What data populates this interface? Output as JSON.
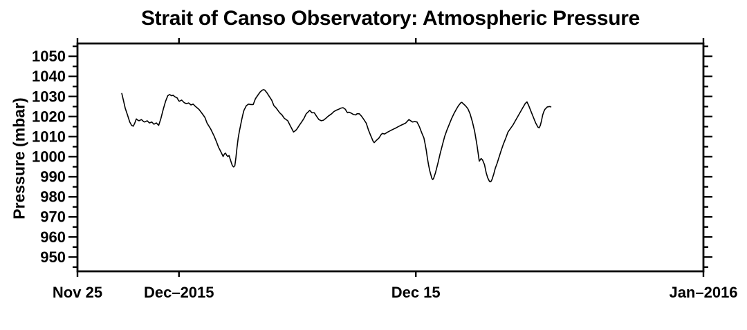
{
  "page": {
    "background": "#ffffff"
  },
  "chart_data": {
    "type": "line",
    "title": "Strait of Canso Observatory: Atmospheric Pressure",
    "xlabel": "",
    "ylabel": "Pressure (mbar)",
    "line_color": "#000000",
    "frame_color": "#000000",
    "grid": false,
    "legend": "none",
    "x_unit": "days since Nov 25 2015",
    "xlim": [
      0,
      37
    ],
    "ylim": [
      942.9,
      1056.4
    ],
    "y_major_ticks": [
      950,
      960,
      970,
      980,
      990,
      1000,
      1010,
      1020,
      1030,
      1040,
      1050
    ],
    "y_minor_step": 5,
    "x_ticks": [
      {
        "label": "Nov 25",
        "day": 0
      },
      {
        "label": "Dec–2015",
        "day": 6
      },
      {
        "label": "Dec 15",
        "day": 20
      },
      {
        "label": "Jan–2016",
        "day": 37
      }
    ],
    "series": [
      {
        "name": "atmospheric-pressure",
        "points": [
          [
            2.62,
            1031.5
          ],
          [
            2.72,
            1028.0
          ],
          [
            2.82,
            1024.2
          ],
          [
            2.96,
            1020.7
          ],
          [
            3.09,
            1017.3
          ],
          [
            3.2,
            1015.6
          ],
          [
            3.3,
            1015.2
          ],
          [
            3.39,
            1016.8
          ],
          [
            3.48,
            1018.8
          ],
          [
            3.57,
            1018.2
          ],
          [
            3.64,
            1017.9
          ],
          [
            3.78,
            1018.5
          ],
          [
            3.91,
            1017.5
          ],
          [
            3.98,
            1017.3
          ],
          [
            4.12,
            1017.9
          ],
          [
            4.25,
            1016.8
          ],
          [
            4.39,
            1017.3
          ],
          [
            4.52,
            1016.2
          ],
          [
            4.66,
            1016.8
          ],
          [
            4.8,
            1015.6
          ],
          [
            4.93,
            1019.0
          ],
          [
            5.07,
            1023.6
          ],
          [
            5.21,
            1027.6
          ],
          [
            5.34,
            1030.4
          ],
          [
            5.45,
            1031.0
          ],
          [
            5.55,
            1030.4
          ],
          [
            5.66,
            1030.6
          ],
          [
            5.75,
            1029.9
          ],
          [
            5.89,
            1029.3
          ],
          [
            5.96,
            1028.2
          ],
          [
            6.02,
            1027.6
          ],
          [
            6.16,
            1028.2
          ],
          [
            6.3,
            1027.0
          ],
          [
            6.43,
            1026.4
          ],
          [
            6.57,
            1026.8
          ],
          [
            6.71,
            1025.8
          ],
          [
            6.84,
            1026.2
          ],
          [
            6.98,
            1025.0
          ],
          [
            7.18,
            1023.6
          ],
          [
            7.37,
            1021.5
          ],
          [
            7.53,
            1019.6
          ],
          [
            7.66,
            1016.7
          ],
          [
            7.87,
            1013.9
          ],
          [
            8.07,
            1010.4
          ],
          [
            8.21,
            1007.6
          ],
          [
            8.34,
            1004.7
          ],
          [
            8.48,
            1002.4
          ],
          [
            8.61,
            1000.1
          ],
          [
            8.68,
            1001.3
          ],
          [
            8.75,
            1001.8
          ],
          [
            8.82,
            1000.7
          ],
          [
            8.89,
            1000.1
          ],
          [
            8.96,
            1000.6
          ],
          [
            9.02,
            999.0
          ],
          [
            9.09,
            997.2
          ],
          [
            9.16,
            995.5
          ],
          [
            9.23,
            994.9
          ],
          [
            9.3,
            995.5
          ],
          [
            9.36,
            999.0
          ],
          [
            9.43,
            1004.7
          ],
          [
            9.5,
            1009.3
          ],
          [
            9.57,
            1012.7
          ],
          [
            9.64,
            1015.6
          ],
          [
            9.71,
            1018.5
          ],
          [
            9.77,
            1020.8
          ],
          [
            9.84,
            1023.1
          ],
          [
            9.98,
            1025.4
          ],
          [
            10.11,
            1026.2
          ],
          [
            10.25,
            1026.0
          ],
          [
            10.39,
            1026.0
          ],
          [
            10.52,
            1028.9
          ],
          [
            10.66,
            1030.6
          ],
          [
            10.8,
            1032.3
          ],
          [
            10.93,
            1033.2
          ],
          [
            11.0,
            1033.4
          ],
          [
            11.07,
            1033.2
          ],
          [
            11.21,
            1031.7
          ],
          [
            11.34,
            1030.0
          ],
          [
            11.48,
            1028.2
          ],
          [
            11.61,
            1025.4
          ],
          [
            11.75,
            1024.2
          ],
          [
            11.95,
            1021.9
          ],
          [
            12.09,
            1020.8
          ],
          [
            12.23,
            1019.1
          ],
          [
            12.43,
            1017.9
          ],
          [
            12.57,
            1015.5
          ],
          [
            12.7,
            1013.5
          ],
          [
            12.77,
            1012.3
          ],
          [
            12.89,
            1013.0
          ],
          [
            12.98,
            1013.9
          ],
          [
            13.11,
            1015.6
          ],
          [
            13.25,
            1017.3
          ],
          [
            13.39,
            1019.1
          ],
          [
            13.52,
            1021.4
          ],
          [
            13.66,
            1022.5
          ],
          [
            13.73,
            1023.1
          ],
          [
            13.86,
            1021.9
          ],
          [
            14.0,
            1021.9
          ],
          [
            14.13,
            1020.2
          ],
          [
            14.27,
            1018.5
          ],
          [
            14.41,
            1017.9
          ],
          [
            14.54,
            1018.2
          ],
          [
            14.68,
            1019.1
          ],
          [
            14.82,
            1020.2
          ],
          [
            15.02,
            1021.4
          ],
          [
            15.16,
            1022.5
          ],
          [
            15.29,
            1023.1
          ],
          [
            15.43,
            1023.6
          ],
          [
            15.57,
            1024.2
          ],
          [
            15.7,
            1024.4
          ],
          [
            15.84,
            1023.6
          ],
          [
            15.91,
            1022.5
          ],
          [
            15.97,
            1021.9
          ],
          [
            16.04,
            1022.2
          ],
          [
            16.18,
            1021.7
          ],
          [
            16.32,
            1021.0
          ],
          [
            16.45,
            1020.8
          ],
          [
            16.52,
            1021.4
          ],
          [
            16.66,
            1021.4
          ],
          [
            16.79,
            1020.2
          ],
          [
            16.93,
            1018.5
          ],
          [
            17.07,
            1016.7
          ],
          [
            17.2,
            1013.3
          ],
          [
            17.34,
            1010.4
          ],
          [
            17.48,
            1007.6
          ],
          [
            17.54,
            1007.0
          ],
          [
            17.68,
            1008.2
          ],
          [
            17.82,
            1009.3
          ],
          [
            17.95,
            1011.0
          ],
          [
            18.02,
            1011.6
          ],
          [
            18.16,
            1011.3
          ],
          [
            18.3,
            1012.1
          ],
          [
            18.57,
            1013.3
          ],
          [
            18.84,
            1014.4
          ],
          [
            19.11,
            1015.6
          ],
          [
            19.39,
            1016.7
          ],
          [
            19.59,
            1018.5
          ],
          [
            19.8,
            1017.3
          ],
          [
            19.93,
            1017.5
          ],
          [
            20.07,
            1017.3
          ],
          [
            20.21,
            1015.0
          ],
          [
            20.34,
            1012.1
          ],
          [
            20.48,
            1009.3
          ],
          [
            20.55,
            1006.4
          ],
          [
            20.62,
            1003.0
          ],
          [
            20.68,
            999.5
          ],
          [
            20.75,
            996.1
          ],
          [
            20.82,
            993.2
          ],
          [
            20.89,
            990.9
          ],
          [
            20.95,
            989.2
          ],
          [
            21.0,
            988.6
          ],
          [
            21.05,
            989.2
          ],
          [
            21.16,
            992.0
          ],
          [
            21.3,
            996.6
          ],
          [
            21.43,
            1001.3
          ],
          [
            21.57,
            1005.8
          ],
          [
            21.7,
            1010.0
          ],
          [
            21.84,
            1013.3
          ],
          [
            21.98,
            1016.2
          ],
          [
            22.11,
            1018.9
          ],
          [
            22.25,
            1021.4
          ],
          [
            22.38,
            1023.4
          ],
          [
            22.52,
            1025.4
          ],
          [
            22.66,
            1026.9
          ],
          [
            22.72,
            1027.1
          ],
          [
            22.79,
            1026.5
          ],
          [
            22.93,
            1025.4
          ],
          [
            23.07,
            1024.0
          ],
          [
            23.2,
            1021.5
          ],
          [
            23.34,
            1017.5
          ],
          [
            23.48,
            1012.5
          ],
          [
            23.61,
            1006.0
          ],
          [
            23.68,
            1002.0
          ],
          [
            23.75,
            997.8
          ],
          [
            23.86,
            999.1
          ],
          [
            23.94,
            998.4
          ],
          [
            24.06,
            996.0
          ],
          [
            24.16,
            992.0
          ],
          [
            24.25,
            989.5
          ],
          [
            24.36,
            987.6
          ],
          [
            24.43,
            987.5
          ],
          [
            24.5,
            988.6
          ],
          [
            24.61,
            991.4
          ],
          [
            24.7,
            994.3
          ],
          [
            24.8,
            996.6
          ],
          [
            24.91,
            999.5
          ],
          [
            25.04,
            1003.0
          ],
          [
            25.18,
            1006.4
          ],
          [
            25.32,
            1009.3
          ],
          [
            25.45,
            1012.3
          ],
          [
            25.73,
            1015.6
          ],
          [
            26.0,
            1019.6
          ],
          [
            26.27,
            1023.6
          ],
          [
            26.47,
            1026.5
          ],
          [
            26.57,
            1027.3
          ],
          [
            26.68,
            1025.3
          ],
          [
            26.81,
            1022.5
          ],
          [
            26.95,
            1019.6
          ],
          [
            27.09,
            1016.7
          ],
          [
            27.22,
            1014.7
          ],
          [
            27.29,
            1014.4
          ],
          [
            27.36,
            1015.6
          ],
          [
            27.43,
            1017.9
          ],
          [
            27.5,
            1020.8
          ],
          [
            27.57,
            1022.5
          ],
          [
            27.63,
            1023.6
          ],
          [
            27.77,
            1024.8
          ],
          [
            27.91,
            1025.0
          ],
          [
            27.98,
            1024.8
          ]
        ]
      }
    ]
  }
}
